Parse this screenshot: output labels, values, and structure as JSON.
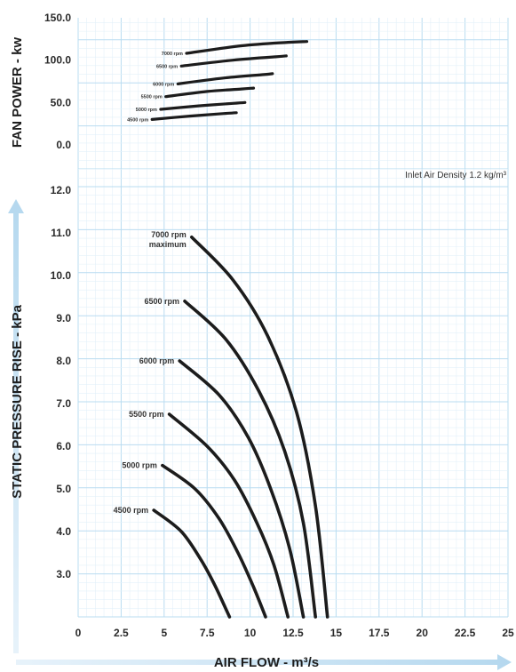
{
  "chart_data": [
    {
      "type": "line",
      "name": "fan-power",
      "ylabel": "FAN POWER - kw",
      "xlim": [
        0,
        25
      ],
      "ylim": [
        0,
        150
      ],
      "yticks": [
        "150.0",
        "100.0",
        "50.0",
        "0.0"
      ],
      "grid": true,
      "series": [
        {
          "name": "4500 rpm",
          "points": [
            [
              4.3,
              30
            ],
            [
              6.5,
              34
            ],
            [
              8.5,
              37
            ],
            [
              9.2,
              38
            ]
          ]
        },
        {
          "name": "5000 rpm",
          "points": [
            [
              4.8,
              42
            ],
            [
              7.0,
              46
            ],
            [
              9.0,
              49
            ],
            [
              9.7,
              50
            ]
          ]
        },
        {
          "name": "5500 rpm",
          "points": [
            [
              5.1,
              57
            ],
            [
              7.5,
              63
            ],
            [
              9.5,
              66
            ],
            [
              10.2,
              67
            ]
          ]
        },
        {
          "name": "6000 rpm",
          "points": [
            [
              5.8,
              72
            ],
            [
              8.5,
              79
            ],
            [
              10.8,
              83
            ],
            [
              11.3,
              84
            ]
          ]
        },
        {
          "name": "6500 rpm",
          "points": [
            [
              6.0,
              93
            ],
            [
              9.0,
              100
            ],
            [
              11.5,
              104
            ],
            [
              12.1,
              105
            ]
          ]
        },
        {
          "name": "7000 rpm",
          "points": [
            [
              6.3,
              108
            ],
            [
              9.5,
              117
            ],
            [
              12.2,
              121
            ],
            [
              13.3,
              122
            ]
          ]
        }
      ]
    },
    {
      "type": "line",
      "name": "static-pressure",
      "ylabel": "STATIC PRESSURE RISE - kPa",
      "xlabel": "AIR FLOW - m³/s",
      "xlim": [
        0,
        25
      ],
      "ylim": [
        2,
        12
      ],
      "xticks": [
        "0",
        "2.5",
        "5",
        "7.5",
        "10",
        "12.5",
        "15",
        "17.5",
        "20",
        "22.5",
        "25"
      ],
      "yticks": [
        "12.0",
        "11.0",
        "10.0",
        "9.0",
        "8.0",
        "7.0",
        "6.0",
        "5.0",
        "4.0",
        "3.0"
      ],
      "grid": true,
      "annotation": "Inlet Air Density 1.2 kg/m³",
      "series": [
        {
          "name": "4500 rpm",
          "points": [
            [
              4.4,
              4.5
            ],
            [
              6.0,
              4.0
            ],
            [
              7.2,
              3.3
            ],
            [
              8.0,
              2.7
            ],
            [
              8.8,
              2.0
            ]
          ]
        },
        {
          "name": "5000 rpm",
          "points": [
            [
              4.9,
              5.55
            ],
            [
              6.8,
              5.0
            ],
            [
              8.2,
              4.3
            ],
            [
              9.3,
              3.5
            ],
            [
              10.2,
              2.7
            ],
            [
              10.9,
              2.0
            ]
          ]
        },
        {
          "name": "5500 rpm",
          "points": [
            [
              5.3,
              6.75
            ],
            [
              7.5,
              6.0
            ],
            [
              9.1,
              5.2
            ],
            [
              10.4,
              4.2
            ],
            [
              11.4,
              3.2
            ],
            [
              12.2,
              2.0
            ]
          ]
        },
        {
          "name": "6000 rpm",
          "points": [
            [
              5.9,
              8.0
            ],
            [
              8.2,
              7.2
            ],
            [
              9.9,
              6.2
            ],
            [
              11.2,
              5.0
            ],
            [
              12.3,
              3.6
            ],
            [
              13.1,
              2.0
            ]
          ]
        },
        {
          "name": "6500 rpm",
          "points": [
            [
              6.2,
              9.4
            ],
            [
              8.6,
              8.5
            ],
            [
              10.5,
              7.3
            ],
            [
              12.0,
              5.9
            ],
            [
              13.1,
              4.2
            ],
            [
              13.8,
              2.0
            ]
          ]
        },
        {
          "name": "7000 rpm maximum",
          "points": [
            [
              6.6,
              10.9
            ],
            [
              9.0,
              9.9
            ],
            [
              11.0,
              8.6
            ],
            [
              12.7,
              6.8
            ],
            [
              13.8,
              4.6
            ],
            [
              14.5,
              2.0
            ]
          ]
        }
      ]
    }
  ]
}
